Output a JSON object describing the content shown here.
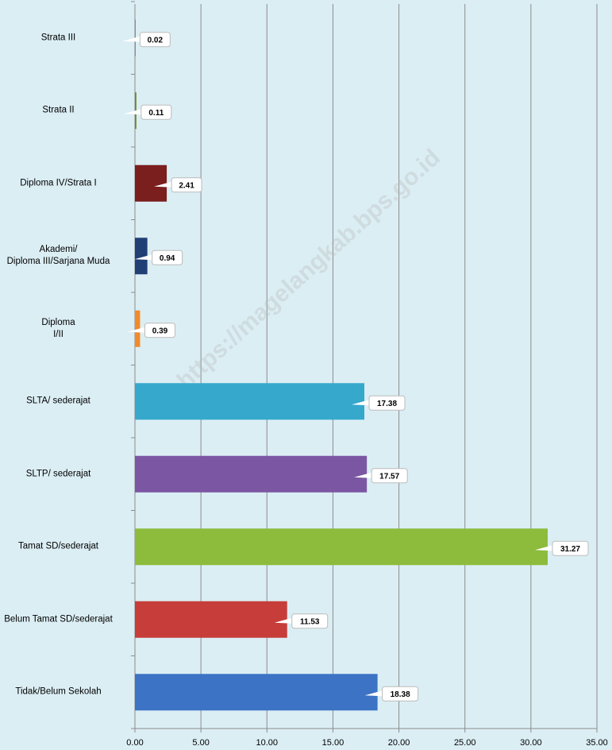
{
  "chart_data": {
    "type": "hbar",
    "watermark": "https://magelangkab.bps.go.id",
    "categories": [
      "Strata III",
      "Strata II",
      "Diploma IV/Strata I",
      "Akademi/\nDiploma III/Sarjana Muda",
      "Diploma\nI/II",
      "SLTA/ sederajat",
      "SLTP/ sederajat",
      "Tamat SD/sederajat",
      "Belum Tamat SD/sederajat",
      "Tidak/Belum Sekolah"
    ],
    "values": [
      0.02,
      0.11,
      2.41,
      0.94,
      0.39,
      17.38,
      17.57,
      31.27,
      11.53,
      18.38
    ],
    "colors": [
      "#8a8a8a",
      "#6a8a2a",
      "#7b1e1e",
      "#1f3f75",
      "#f28a2a",
      "#35a8cc",
      "#7b57a3",
      "#8dbb3c",
      "#c63d3a",
      "#3c73c4"
    ],
    "xlim": [
      0,
      35
    ],
    "xticks": [
      {
        "value": 0,
        "label": "0.00"
      },
      {
        "value": 5,
        "label": "5.00"
      },
      {
        "value": 10,
        "label": "10.00"
      },
      {
        "value": 15,
        "label": "15.00"
      },
      {
        "value": 20,
        "label": "20.00"
      },
      {
        "value": 25,
        "label": "25.00"
      },
      {
        "value": 30,
        "label": "30.00"
      },
      {
        "value": 35,
        "label": "35.00"
      }
    ],
    "grid": true
  }
}
